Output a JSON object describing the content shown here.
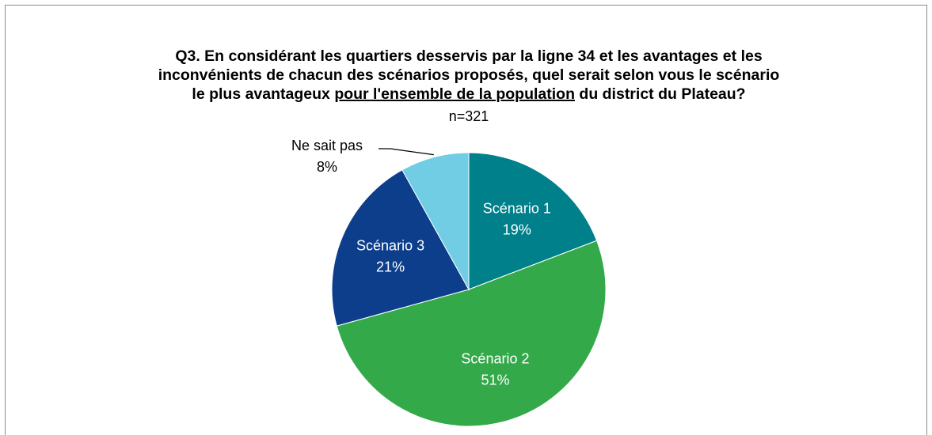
{
  "chart_data": {
    "type": "pie",
    "title": [
      "Q3. En considérant les quartiers desservis par la ligne 34 et les avantages et les",
      "inconvénients de chacun des scénarios proposés, quel serait selon vous le scénario",
      [
        "le plus avantageux ",
        "pour l'ensemble de la population",
        " du district du Plateau?"
      ]
    ],
    "subtitle": "n=321",
    "categories": [
      "Scénario 1",
      "Scénario 2",
      "Scénario 3",
      "Ne sait pas"
    ],
    "values": [
      19,
      51,
      21,
      8
    ],
    "value_labels": [
      "19%",
      "51%",
      "21%",
      "8%"
    ],
    "colors": [
      "#00808a",
      "#34a94a",
      "#0d3e8c",
      "#70cde4"
    ]
  }
}
